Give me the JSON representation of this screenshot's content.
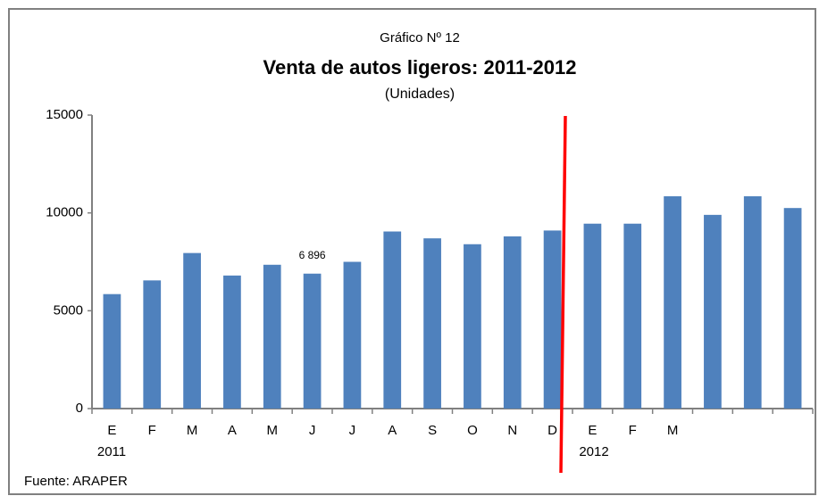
{
  "chart_data": {
    "type": "bar",
    "subtitle_top": "Gráfico Nº 12",
    "title": "Venta de autos ligeros: 2011-2012",
    "subtitle": "(Unidades)",
    "categories": [
      "E",
      "F",
      "M",
      "A",
      "M",
      "J",
      "J",
      "A",
      "S",
      "O",
      "N",
      "D",
      "E",
      "F",
      "M",
      null,
      null,
      null
    ],
    "values": [
      5850,
      6550,
      7950,
      6800,
      7350,
      6896,
      7500,
      9050,
      8700,
      8400,
      8800,
      9100,
      9450,
      9450,
      10850,
      9900,
      10850,
      10250
    ],
    "value_labels": [
      null,
      null,
      null,
      null,
      null,
      "6 896",
      null,
      null,
      null,
      null,
      null,
      null,
      null,
      null,
      null,
      null,
      null,
      null
    ],
    "color": "#4f81bd",
    "ylim": [
      0,
      15000
    ],
    "yticks": [
      0,
      5000,
      10000,
      15000
    ],
    "grid": false,
    "annotations": [
      "2011",
      "2012"
    ],
    "source": "Fuente: ARAPER"
  }
}
